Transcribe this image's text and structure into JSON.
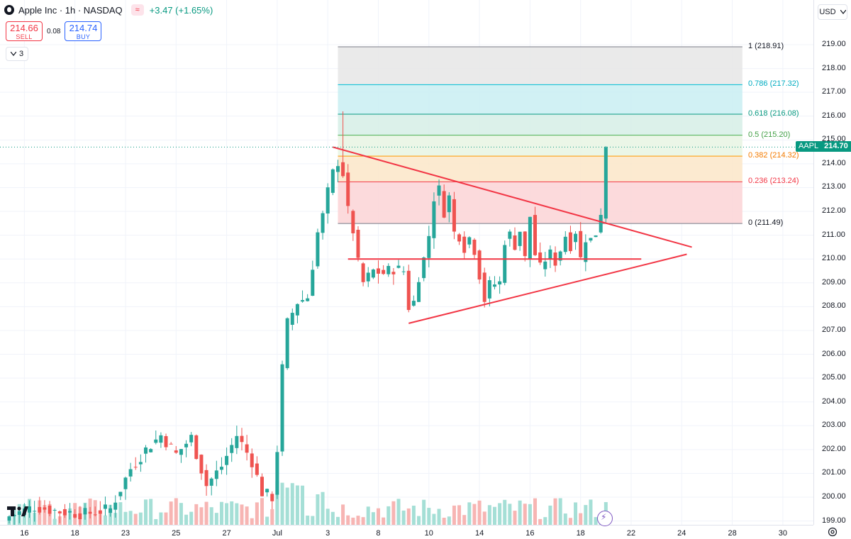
{
  "header": {
    "title": "Apple Inc · 1h · NASDAQ",
    "change": "+3.47 (+1.65%)",
    "sell": {
      "price": "214.66",
      "label": "SELL"
    },
    "buy": {
      "price": "214.74",
      "label": "BUY"
    },
    "spread": "0.08",
    "indicator_count": "3"
  },
  "price_scale": {
    "currency": "USD",
    "labels": [
      "219.00",
      "218.00",
      "217.00",
      "216.00",
      "215.00",
      "214.00",
      "213.00",
      "212.00",
      "211.00",
      "210.00",
      "209.00",
      "208.00",
      "207.00",
      "206.00",
      "205.00",
      "204.00",
      "203.00",
      "202.00",
      "201.00",
      "200.00",
      "199.00"
    ],
    "last_symbol": "AAPL",
    "last_price": "214.70"
  },
  "time_axis": {
    "labels": [
      "16",
      "18",
      "23",
      "25",
      "27",
      "Jul",
      "3",
      "8",
      "10",
      "14",
      "16",
      "18",
      "22",
      "24",
      "28",
      "30"
    ]
  },
  "fib": {
    "labels": [
      "1 (218.91)",
      "0.786 (217.32)",
      "0.618 (216.08)",
      "0.5 (215.20)",
      "0.382 (214.32)",
      "0.236 (213.24)",
      "0 (211.49)"
    ]
  },
  "colors": {
    "up": "#26a69a",
    "down": "#ef5350",
    "trendline": "#f23645",
    "last_price": "#089981"
  },
  "chart_data": {
    "type": "candlestick",
    "symbol": "AAPL",
    "interval": "1h",
    "ylim": [
      198.8,
      220.5
    ],
    "x": [
      {
        "label": "16",
        "index": 3
      },
      {
        "label": "18",
        "index": 13
      },
      {
        "label": "23",
        "index": 23
      },
      {
        "label": "25",
        "index": 33
      },
      {
        "label": "27",
        "index": 43
      },
      {
        "label": "Jul",
        "index": 53
      },
      {
        "label": "3",
        "index": 63
      },
      {
        "label": "8",
        "index": 73
      },
      {
        "label": "10",
        "index": 83
      },
      {
        "label": "14",
        "index": 93
      },
      {
        "label": "16",
        "index": 103
      },
      {
        "label": "18",
        "index": 113
      },
      {
        "label": "22",
        "index": 123
      },
      {
        "label": "24",
        "index": 133
      },
      {
        "label": "28",
        "index": 143
      },
      {
        "label": "30",
        "index": 153
      }
    ],
    "anchors": [
      {
        "index": 0,
        "close": 199.2
      },
      {
        "index": 5,
        "close": 199.6
      },
      {
        "index": 10,
        "close": 199.4
      },
      {
        "index": 15,
        "close": 199.3
      },
      {
        "index": 20,
        "close": 199.5
      },
      {
        "index": 24,
        "close": 201.2
      },
      {
        "index": 27,
        "close": 202.0
      },
      {
        "index": 30,
        "close": 202.6
      },
      {
        "index": 33,
        "close": 201.8
      },
      {
        "index": 36,
        "close": 202.5
      },
      {
        "index": 39,
        "close": 200.5
      },
      {
        "index": 42,
        "close": 201.3
      },
      {
        "index": 45,
        "close": 202.6
      },
      {
        "index": 48,
        "close": 201.5
      },
      {
        "index": 50,
        "close": 200.2
      },
      {
        "index": 52,
        "close": 200.0
      },
      {
        "index": 53,
        "close": 202.0
      },
      {
        "index": 54,
        "close": 205.4
      },
      {
        "index": 55,
        "close": 207.3
      },
      {
        "index": 57,
        "close": 208.2
      },
      {
        "index": 59,
        "close": 208.4
      },
      {
        "index": 61,
        "close": 211.1
      },
      {
        "index": 62,
        "close": 211.8
      },
      {
        "index": 63,
        "close": 212.8
      },
      {
        "index": 64,
        "close": 213.6
      },
      {
        "index": 65,
        "close": 214.1
      },
      {
        "index": 66,
        "close": 213.6
      },
      {
        "index": 67,
        "close": 212.0
      },
      {
        "index": 68,
        "close": 211.2
      },
      {
        "index": 69,
        "close": 209.8
      },
      {
        "index": 70,
        "close": 209.0
      },
      {
        "index": 72,
        "close": 209.5
      },
      {
        "index": 74,
        "close": 209.4
      },
      {
        "index": 76,
        "close": 209.6
      },
      {
        "index": 78,
        "close": 209.5
      },
      {
        "index": 79,
        "close": 208.0
      },
      {
        "index": 80,
        "close": 208.2
      },
      {
        "index": 81,
        "close": 209.3
      },
      {
        "index": 82,
        "close": 210.0
      },
      {
        "index": 83,
        "close": 211.0
      },
      {
        "index": 84,
        "close": 212.6
      },
      {
        "index": 85,
        "close": 212.9
      },
      {
        "index": 86,
        "close": 212.0
      },
      {
        "index": 87,
        "close": 212.6
      },
      {
        "index": 88,
        "close": 211.1
      },
      {
        "index": 89,
        "close": 211.0
      },
      {
        "index": 90,
        "close": 210.5
      },
      {
        "index": 91,
        "close": 210.9
      },
      {
        "index": 92,
        "close": 210.4
      },
      {
        "index": 94,
        "close": 208.3
      },
      {
        "index": 95,
        "close": 208.9
      },
      {
        "index": 97,
        "close": 209.0
      },
      {
        "index": 98,
        "close": 210.8
      },
      {
        "index": 99,
        "close": 211.0
      },
      {
        "index": 100,
        "close": 210.6
      },
      {
        "index": 101,
        "close": 211.2
      },
      {
        "index": 102,
        "close": 210.0
      },
      {
        "index": 103,
        "close": 211.8
      },
      {
        "index": 104,
        "close": 210.2
      },
      {
        "index": 105,
        "close": 209.6
      },
      {
        "index": 106,
        "close": 210.0
      },
      {
        "index": 107,
        "close": 210.2
      },
      {
        "index": 108,
        "close": 209.9
      },
      {
        "index": 109,
        "close": 210.4
      },
      {
        "index": 110,
        "close": 211.0
      },
      {
        "index": 111,
        "close": 210.6
      },
      {
        "index": 112,
        "close": 211.2
      },
      {
        "index": 113,
        "close": 210.0
      },
      {
        "index": 114,
        "close": 210.9
      },
      {
        "index": 115,
        "close": 210.8
      },
      {
        "index": 116,
        "close": 211.1
      },
      {
        "index": 117,
        "close": 212.0
      },
      {
        "index": 118,
        "close": 214.7
      }
    ],
    "last_price": 214.7,
    "fib_retracement": {
      "levels": [
        {
          "ratio": 1,
          "price": 218.91
        },
        {
          "ratio": 0.786,
          "price": 217.32
        },
        {
          "ratio": 0.618,
          "price": 216.08
        },
        {
          "ratio": 0.5,
          "price": 215.2
        },
        {
          "ratio": 0.382,
          "price": 214.32
        },
        {
          "ratio": 0.236,
          "price": 213.24
        },
        {
          "ratio": 0,
          "price": 211.49
        }
      ],
      "start_index": 65,
      "end_index": 145
    },
    "trendlines": [
      {
        "from": {
          "index": 64,
          "price": 214.7
        },
        "to": {
          "index": 135,
          "price": 210.5
        }
      },
      {
        "from": {
          "index": 79,
          "price": 207.3
        },
        "to": {
          "index": 134,
          "price": 210.2
        }
      },
      {
        "from": {
          "index": 67,
          "price": 210.0
        },
        "to": {
          "index": 125,
          "price": 210.0
        }
      }
    ]
  }
}
